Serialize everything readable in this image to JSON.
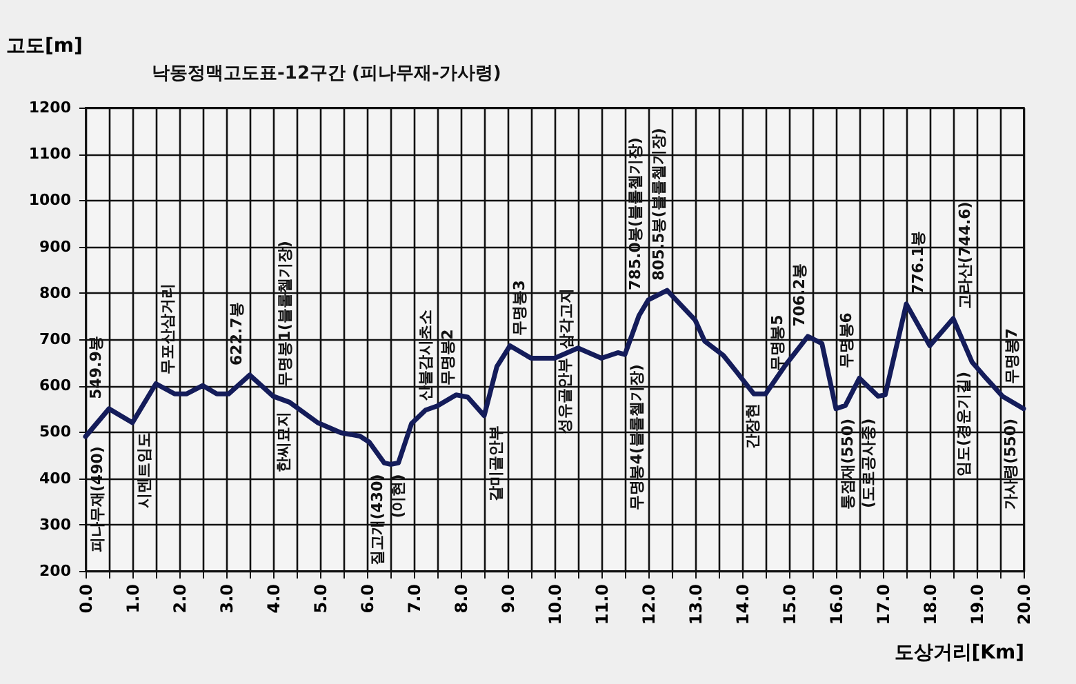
{
  "chart_data": {
    "type": "line",
    "title": "낙동정맥고도표-12구간 (피나무재-가사령)",
    "xlabel": "도상거리[Km]",
    "ylabel": "고도[m]",
    "x": [
      0,
      0.5,
      1.0,
      1.5,
      1.9,
      2.15,
      2.5,
      2.8,
      3.05,
      3.5,
      4.0,
      4.35,
      4.95,
      5.45,
      5.85,
      6.05,
      6.37,
      6.5,
      6.67,
      6.95,
      7.25,
      7.5,
      7.9,
      8.15,
      8.5,
      8.77,
      9.05,
      9.5,
      10.0,
      10.5,
      11.0,
      11.35,
      11.5,
      11.8,
      12.0,
      12.4,
      13.0,
      13.2,
      13.6,
      13.87,
      14.25,
      14.5,
      14.9,
      15.4,
      15.7,
      16.0,
      16.2,
      16.5,
      16.9,
      17.05,
      17.5,
      18.0,
      18.5,
      18.9,
      19.2,
      19.55,
      20.0
    ],
    "series": [
      {
        "color": "#141c5a",
        "values": [
          490,
          549.9,
          520,
          604,
          582,
          582,
          600,
          582,
          582,
          622.7,
          577,
          564,
          520,
          498,
          491,
          478,
          433,
          430,
          433,
          518,
          547,
          556,
          580,
          575,
          535,
          641,
          686,
          659,
          659,
          681,
          659,
          671,
          667,
          751,
          785,
          805.5,
          741,
          696,
          665,
          631,
          582,
          582,
          641,
          706.2,
          691,
          550,
          557,
          616,
          577,
          580,
          776.1,
          686,
          744.6,
          651,
          616,
          577,
          550
        ]
      }
    ],
    "xlim": [
      0,
      20
    ],
    "ylim": [
      200,
      1200
    ],
    "xticks": [
      {
        "value": 0,
        "label": "0.0"
      },
      {
        "value": 0.5,
        "label": null
      },
      {
        "value": 1,
        "label": "1.0"
      },
      {
        "value": 1.5,
        "label": null
      },
      {
        "value": 2,
        "label": "2.0"
      },
      {
        "value": 2.5,
        "label": null
      },
      {
        "value": 3,
        "label": "3.0"
      },
      {
        "value": 3.5,
        "label": null
      },
      {
        "value": 4,
        "label": "4.0"
      },
      {
        "value": 4.5,
        "label": null
      },
      {
        "value": 5,
        "label": "5.0"
      },
      {
        "value": 5.5,
        "label": null
      },
      {
        "value": 6,
        "label": "6.0"
      },
      {
        "value": 6.5,
        "label": null
      },
      {
        "value": 7,
        "label": "7.0"
      },
      {
        "value": 7.5,
        "label": null
      },
      {
        "value": 8,
        "label": "8.0"
      },
      {
        "value": 8.5,
        "label": null
      },
      {
        "value": 9,
        "label": "9.0"
      },
      {
        "value": 9.5,
        "label": null
      },
      {
        "value": 10,
        "label": "10.0"
      },
      {
        "value": 10.5,
        "label": null
      },
      {
        "value": 11,
        "label": "11.0"
      },
      {
        "value": 11.5,
        "label": null
      },
      {
        "value": 12,
        "label": "12.0"
      },
      {
        "value": 12.5,
        "label": null
      },
      {
        "value": 13,
        "label": "13.0"
      },
      {
        "value": 13.5,
        "label": null
      },
      {
        "value": 14,
        "label": "14.0"
      },
      {
        "value": 14.5,
        "label": null
      },
      {
        "value": 15,
        "label": "15.0"
      },
      {
        "value": 15.5,
        "label": null
      },
      {
        "value": 16,
        "label": "16.0"
      },
      {
        "value": 16.5,
        "label": null
      },
      {
        "value": 17,
        "label": "17.0"
      },
      {
        "value": 17.5,
        "label": null
      },
      {
        "value": 18,
        "label": "18.0"
      },
      {
        "value": 18.5,
        "label": null
      },
      {
        "value": 19,
        "label": "19.0"
      },
      {
        "value": 19.5,
        "label": null
      },
      {
        "value": 20,
        "label": "20.0"
      }
    ],
    "yticks": [
      200,
      300,
      400,
      500,
      600,
      700,
      800,
      900,
      1000,
      1100,
      1200
    ],
    "grid": true,
    "line_style": "solid",
    "annotations": [
      {
        "text": "피나무재(490)",
        "x": 0,
        "y": 490
      },
      {
        "text": "549.9봉",
        "x": 0.5,
        "y": 549.9
      },
      {
        "text": "시멘트임도",
        "x": 1.0,
        "y": 520
      },
      {
        "text": "무포산삼거리",
        "x": 1.5,
        "y": 604
      },
      {
        "text": "622.7봉",
        "x": 3.5,
        "y": 622.7
      },
      {
        "text": "무명봉1(블롤첼기장)",
        "x": 4.0,
        "y": 577
      },
      {
        "text": "한씨묘지",
        "x": 4.35,
        "y": 564
      },
      {
        "text": "질고개(430)",
        "x": 6.5,
        "y": 430
      },
      {
        "text": "(이현)",
        "x": 6.5,
        "y": 430
      },
      {
        "text": "산불감시초소",
        "x": 7.25,
        "y": 547
      },
      {
        "text": "무명봉2",
        "x": 7.9,
        "y": 580
      },
      {
        "text": "갈미골안부",
        "x": 8.5,
        "y": 535
      },
      {
        "text": "무명봉3",
        "x": 9.05,
        "y": 686
      },
      {
        "text": "삼각고지",
        "x": 10.0,
        "y": 659
      },
      {
        "text": "성유골안부",
        "x": 10.5,
        "y": 681
      },
      {
        "text": "무명봉4(블롤첼기장)",
        "x": 11.5,
        "y": 667
      },
      {
        "text": "785.0봉(블롤첼기장)",
        "x": 12.0,
        "y": 785
      },
      {
        "text": "805.5봉(블롤첼기장)",
        "x": 12.4,
        "y": 805.5
      },
      {
        "text": "간장현",
        "x": 14.5,
        "y": 582
      },
      {
        "text": "무명봉5",
        "x": 14.7,
        "y": 611
      },
      {
        "text": "706.2봉",
        "x": 15.4,
        "y": 706.2
      },
      {
        "text": "통점재(550)",
        "x": 16.0,
        "y": 550
      },
      {
        "text": "(도로공사중)",
        "x": 16.0,
        "y": 550
      },
      {
        "text": "무명봉6",
        "x": 16.5,
        "y": 616
      },
      {
        "text": "776.1봉",
        "x": 17.5,
        "y": 776.1
      },
      {
        "text": "고라산(744.6)",
        "x": 18.5,
        "y": 744.6
      },
      {
        "text": "임도(경운기길)",
        "x": 18.9,
        "y": 651
      },
      {
        "text": "무명봉7",
        "x": 19.5,
        "y": 582
      },
      {
        "text": "가사령(550)",
        "x": 20.0,
        "y": 550
      }
    ]
  }
}
